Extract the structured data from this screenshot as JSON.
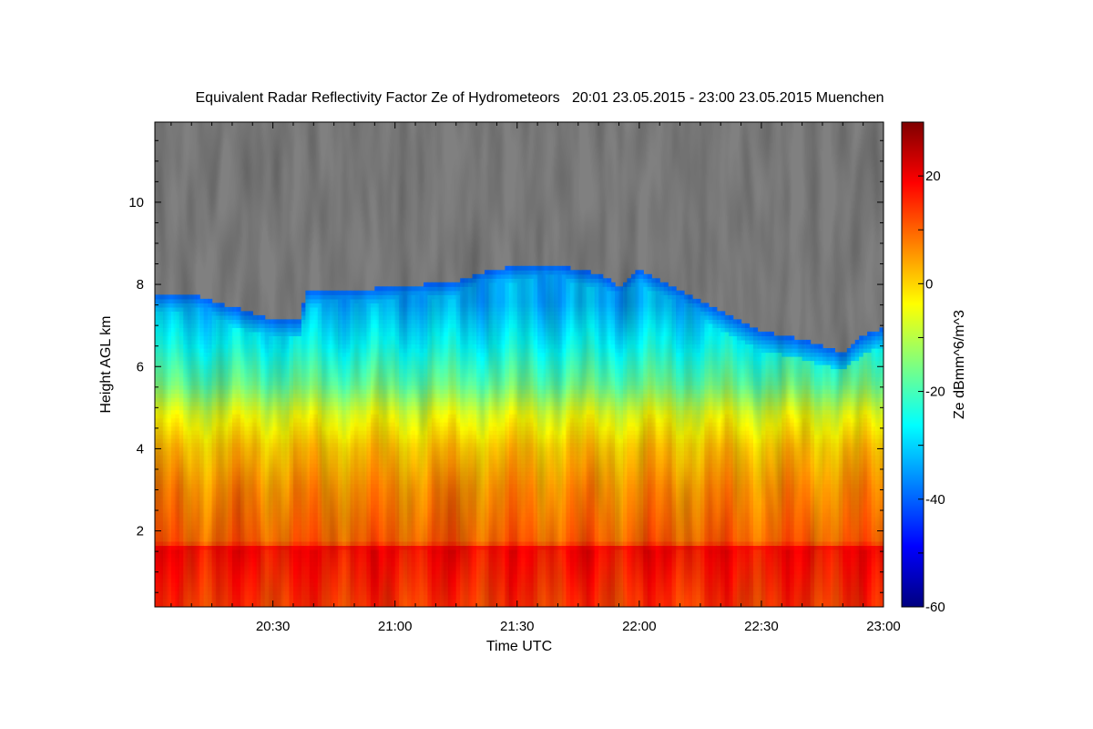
{
  "chart_data": {
    "type": "heatmap",
    "title": "Equivalent Radar Reflectivity Factor Ze of Hydrometeors   20:01 23.05.2015 - 23:00 23.05.2015 Muenchen",
    "xlabel": "Time UTC",
    "ylabel": "Height AGL km",
    "colorbar_label": "Ze dBmm^6/m^3",
    "x_tick_labels": [
      "20:30",
      "21:00",
      "21:30",
      "22:00",
      "22:30",
      "23:00"
    ],
    "x_tick_minutes": [
      30,
      60,
      90,
      120,
      150,
      180
    ],
    "xlim_minutes": [
      1,
      180
    ],
    "y_ticks": [
      2,
      4,
      6,
      8,
      10
    ],
    "ylim": [
      0.15,
      11.95
    ],
    "colorbar_ticks": [
      20,
      0,
      -20,
      -40,
      -60
    ],
    "colorbar_range": [
      -60,
      30
    ],
    "no_signal_color": "#808080",
    "colormap": [
      "#00007f",
      "#0000ff",
      "#007fff",
      "#00ffff",
      "#7fff7f",
      "#ffff00",
      "#ff7f00",
      "#ff0000",
      "#7f0000"
    ],
    "cloud_top_km": [
      {
        "t": 1,
        "h": 7.7
      },
      {
        "t": 10,
        "h": 7.7
      },
      {
        "t": 20,
        "h": 7.4
      },
      {
        "t": 30,
        "h": 7.1
      },
      {
        "t": 37,
        "h": 7.1
      },
      {
        "t": 38,
        "h": 7.8
      },
      {
        "t": 50,
        "h": 7.8
      },
      {
        "t": 60,
        "h": 7.9
      },
      {
        "t": 75,
        "h": 8.0
      },
      {
        "t": 80,
        "h": 8.2
      },
      {
        "t": 90,
        "h": 8.4
      },
      {
        "t": 100,
        "h": 8.4
      },
      {
        "t": 110,
        "h": 8.2
      },
      {
        "t": 115,
        "h": 7.9
      },
      {
        "t": 120,
        "h": 8.3
      },
      {
        "t": 130,
        "h": 7.8
      },
      {
        "t": 140,
        "h": 7.3
      },
      {
        "t": 150,
        "h": 6.8
      },
      {
        "t": 160,
        "h": 6.6
      },
      {
        "t": 170,
        "h": 6.3
      },
      {
        "t": 175,
        "h": 6.7
      },
      {
        "t": 180,
        "h": 6.9
      }
    ],
    "bright_band_km": 1.55,
    "bright_band_ze": 18,
    "description_levels_ze": [
      {
        "h": 0.2,
        "ze": 14
      },
      {
        "h": 1.5,
        "ze": 18
      },
      {
        "h": 1.7,
        "ze": 10
      },
      {
        "h": 3.0,
        "ze": 6
      },
      {
        "h": 4.0,
        "ze": 1
      },
      {
        "h": 4.8,
        "ze": -6
      },
      {
        "h": 5.5,
        "ze": -17
      },
      {
        "h": 6.5,
        "ze": -26
      },
      {
        "h": 7.5,
        "ze": -33
      }
    ]
  }
}
